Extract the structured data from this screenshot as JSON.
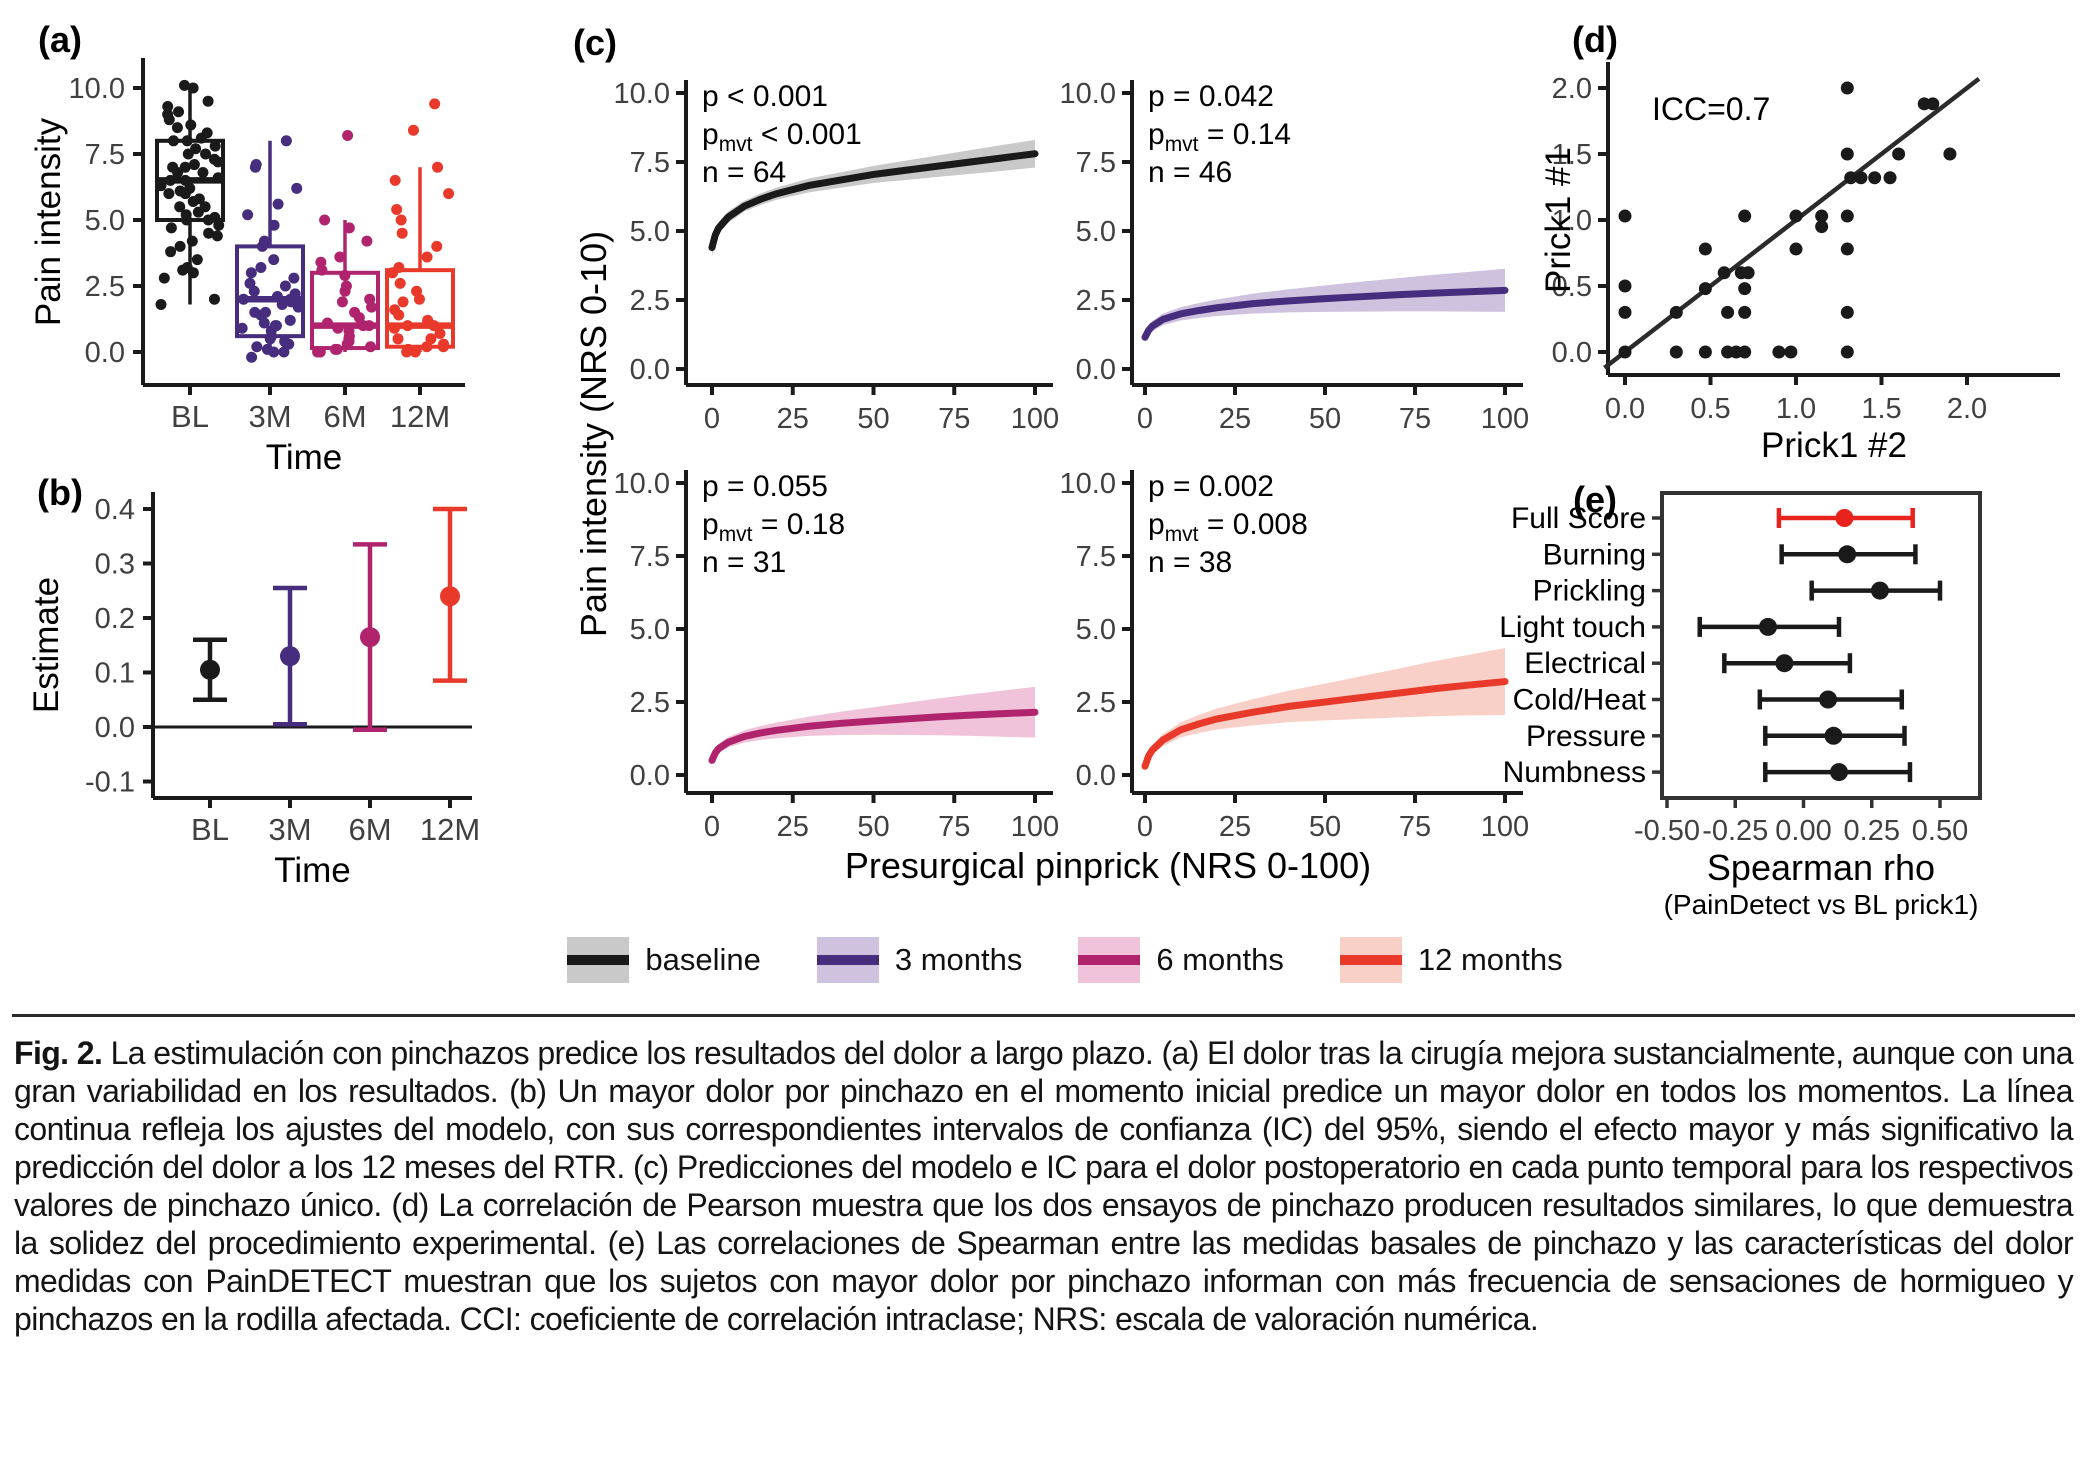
{
  "figure": {
    "panel_tags": {
      "a": "(a)",
      "b": "(b)",
      "c": "(c)",
      "d": "(d)",
      "e": "(e)"
    },
    "colors": {
      "baseline": "#1a1a1a",
      "m3": "#472d7d",
      "m6": "#b0246d",
      "m12": "#e8392b",
      "band_baseline": "#c9c9c9",
      "band_m3": "#cfc2df",
      "band_m6": "#f0c3da",
      "band_m12": "#f9d0c8",
      "forest_highlight": "#e8231d",
      "tick_text": "#404040",
      "axis": "#1a1a1a"
    },
    "legend": {
      "items": [
        {
          "label": "baseline",
          "line": "#1a1a1a",
          "band": "#c9c9c9"
        },
        {
          "label": "3 months",
          "line": "#472d7d",
          "band": "#cfc2df"
        },
        {
          "label": "6 months",
          "line": "#b0246d",
          "band": "#f0c3da"
        },
        {
          "label": "12 months",
          "line": "#e8392b",
          "band": "#f9d0c8"
        }
      ]
    },
    "caption": {
      "label": "Fig. 2.",
      "text": "La estimulación con pinchazos predice los resultados del dolor a largo plazo. (a) El dolor tras la cirugía mejora sustancialmente, aunque con una gran variabilidad en los resultados. (b) Un mayor dolor por pinchazo en el momento inicial predice un mayor dolor en todos los momentos. La línea continua refleja los ajustes del modelo, con sus correspondientes intervalos de confianza (IC) del 95%, siendo el efecto mayor y más significativo la predicción del dolor a los 12 meses del RTR. (c) Predicciones del modelo e IC para el dolor postoperatorio en cada punto temporal para los respectivos valores de pinchazo único. (d) La correlación de Pearson muestra que los dos ensayos de pinchazo producen resultados similares, lo que demuestra la solidez del procedimiento experimental. (e) Las correlaciones de Spearman entre las medidas basales de pinchazo y las características del dolor medidas con PainDETECT muestran que los sujetos con mayor dolor por pinchazo informan con más frecuencia de sensaciones de hormigueo y pinchazos en la rodilla afectada. CCI: coeficiente de correlación intraclase; NRS: escala de valoración numérica."
    }
  },
  "chart_data": [
    {
      "id": "a",
      "type": "boxplot_jitter",
      "xlabel": "Time",
      "ylabel": "Pain intensity",
      "yticks": [
        0,
        2.5,
        5,
        7.5,
        10
      ],
      "ytick_labels": [
        "0.0",
        "2.5",
        "5.0",
        "7.5",
        "10.0"
      ],
      "ylim": [
        -0.6,
        10.8
      ],
      "groups": [
        {
          "label": "BL",
          "color": "#1a1a1a",
          "box": {
            "lo": 1.8,
            "q1": 5.0,
            "med": 6.5,
            "q3": 8.0,
            "hi": 10.0
          },
          "points": [
            1.8,
            2.0,
            2.8,
            3.0,
            3.1,
            3.2,
            3.5,
            3.8,
            4.0,
            4.2,
            4.4,
            4.5,
            4.7,
            4.8,
            5.0,
            5.0,
            5.1,
            5.2,
            5.3,
            5.5,
            5.5,
            5.7,
            5.8,
            6.0,
            6.0,
            6.1,
            6.2,
            6.3,
            6.5,
            6.5,
            6.6,
            6.8,
            6.8,
            7.0,
            7.0,
            7.1,
            7.2,
            7.3,
            7.5,
            7.5,
            7.7,
            7.8,
            8.0,
            8.0,
            8.1,
            8.3,
            8.5,
            8.6,
            8.8,
            9.0,
            9.1,
            9.3,
            9.5,
            10.0,
            10.1
          ]
        },
        {
          "label": "3M",
          "color": "#472d7d",
          "box": {
            "lo": 0.0,
            "q1": 0.6,
            "med": 2.0,
            "q3": 4.0,
            "hi": 8.0
          },
          "points": [
            -0.2,
            0,
            0,
            0.1,
            0.2,
            0.3,
            0.4,
            0.5,
            0.6,
            0.8,
            0.9,
            1.0,
            1.0,
            1.1,
            1.2,
            1.4,
            1.5,
            1.5,
            1.7,
            1.8,
            1.9,
            2.0,
            2.0,
            2.1,
            2.2,
            2.3,
            2.5,
            2.6,
            2.8,
            3.0,
            3.2,
            3.5,
            4.0,
            4.2,
            4.8,
            5.2,
            5.6,
            6.2,
            7.0,
            7.1,
            8.0
          ]
        },
        {
          "label": "6M",
          "color": "#b0246d",
          "box": {
            "lo": 0.0,
            "q1": 0.15,
            "med": 1.0,
            "q3": 3.0,
            "hi": 5.0
          },
          "points": [
            0,
            0,
            0.1,
            0.1,
            0.2,
            0.3,
            0.4,
            0.5,
            0.6,
            0.8,
            0.9,
            1.0,
            1.0,
            1.1,
            1.3,
            1.5,
            1.7,
            1.9,
            2.0,
            2.3,
            2.5,
            2.9,
            3.1,
            3.4,
            3.6,
            4.2,
            4.7,
            5.0,
            8.2
          ]
        },
        {
          "label": "12M",
          "color": "#e8392b",
          "box": {
            "lo": 0.0,
            "q1": 0.2,
            "med": 1.0,
            "q3": 3.1,
            "hi": 7.0
          },
          "points": [
            0,
            0,
            0.1,
            0.2,
            0.2,
            0.3,
            0.5,
            0.5,
            0.7,
            0.9,
            1.0,
            1.0,
            1.2,
            1.4,
            1.6,
            1.9,
            2.0,
            2.3,
            2.6,
            3.0,
            3.2,
            3.6,
            4.0,
            4.5,
            5.0,
            5.4,
            6.0,
            6.5,
            7.0,
            8.4,
            9.4
          ]
        }
      ]
    },
    {
      "id": "b",
      "type": "errorbar",
      "xlabel": "Time",
      "ylabel": "Estimate",
      "yticks": [
        -0.1,
        0,
        0.1,
        0.2,
        0.3,
        0.4
      ],
      "ytick_labels": [
        "-0.1",
        "0.0",
        "0.1",
        "0.2",
        "0.3",
        "0.4"
      ],
      "ylim": [
        -0.15,
        0.43
      ],
      "hline": 0,
      "points": [
        {
          "label": "BL",
          "est": 0.105,
          "lo": 0.05,
          "hi": 0.16,
          "color": "#1a1a1a"
        },
        {
          "label": "3M",
          "est": 0.13,
          "lo": 0.005,
          "hi": 0.255,
          "color": "#472d7d"
        },
        {
          "label": "6M",
          "est": 0.165,
          "lo": -0.005,
          "hi": 0.335,
          "color": "#b0246d"
        },
        {
          "label": "12M",
          "est": 0.24,
          "lo": 0.085,
          "hi": 0.4,
          "color": "#e8392b"
        }
      ]
    },
    {
      "id": "c",
      "type": "line_ci_grid",
      "xlabel": "Presurgical pinprick (NRS 0-100)",
      "ylabel": "Pain intensity (NRS 0-10)",
      "xticks": [
        0,
        25,
        50,
        75,
        100
      ],
      "xtick_labels": [
        "0",
        "25",
        "50",
        "75",
        "100"
      ],
      "yticks": [
        0,
        2.5,
        5,
        7.5,
        10
      ],
      "ytick_labels": [
        "0.0",
        "2.5",
        "5.0",
        "7.5",
        "10.0"
      ],
      "x": [
        0,
        1,
        2,
        5,
        10,
        15,
        20,
        30,
        40,
        50,
        60,
        70,
        80,
        90,
        100
      ],
      "subplots": [
        {
          "name": "baseline",
          "p_line": "p < 0.001",
          "pmvt_value": "< 0.001",
          "n_line": "n = 64",
          "color": "#1a1a1a",
          "band": "#c9c9c9",
          "y": [
            4.4,
            4.85,
            5.1,
            5.5,
            5.9,
            6.15,
            6.35,
            6.65,
            6.85,
            7.05,
            7.2,
            7.35,
            7.5,
            7.65,
            7.8
          ],
          "hw": [
            0.3,
            0.25,
            0.23,
            0.21,
            0.2,
            0.21,
            0.22,
            0.25,
            0.28,
            0.31,
            0.35,
            0.39,
            0.43,
            0.47,
            0.5
          ]
        },
        {
          "name": "3 months",
          "p_line": "p = 0.042",
          "pmvt_value": "= 0.14",
          "n_line": "n = 46",
          "color": "#472d7d",
          "band": "#cfc2df",
          "y": [
            1.15,
            1.4,
            1.55,
            1.8,
            2.0,
            2.12,
            2.22,
            2.37,
            2.47,
            2.55,
            2.62,
            2.69,
            2.75,
            2.8,
            2.85
          ],
          "hw": [
            0.18,
            0.18,
            0.19,
            0.21,
            0.24,
            0.27,
            0.3,
            0.36,
            0.42,
            0.48,
            0.54,
            0.6,
            0.66,
            0.72,
            0.78
          ]
        },
        {
          "name": "6 months",
          "p_line": "p = 0.055",
          "pmvt_value": "= 0.18",
          "n_line": "n = 31",
          "color": "#b0246d",
          "band": "#f0c3da",
          "y": [
            0.5,
            0.75,
            0.9,
            1.12,
            1.32,
            1.44,
            1.53,
            1.67,
            1.77,
            1.85,
            1.92,
            1.99,
            2.05,
            2.1,
            2.15
          ],
          "hw": [
            0.15,
            0.15,
            0.16,
            0.18,
            0.21,
            0.24,
            0.27,
            0.33,
            0.4,
            0.47,
            0.55,
            0.63,
            0.71,
            0.79,
            0.87
          ]
        },
        {
          "name": "12 months",
          "p_line": "p = 0.002",
          "pmvt_value": "= 0.008",
          "n_line": "n = 38",
          "color": "#e8392b",
          "band": "#f9d0c8",
          "y": [
            0.3,
            0.65,
            0.85,
            1.2,
            1.55,
            1.75,
            1.92,
            2.15,
            2.35,
            2.5,
            2.65,
            2.8,
            2.95,
            3.08,
            3.2
          ],
          "hw": [
            0.15,
            0.16,
            0.18,
            0.21,
            0.26,
            0.31,
            0.36,
            0.45,
            0.54,
            0.63,
            0.73,
            0.83,
            0.94,
            1.04,
            1.15
          ]
        }
      ]
    },
    {
      "id": "d",
      "type": "scatter",
      "annotation": "ICC=0.7",
      "xlabel": "Prick1 #2",
      "ylabel": "Prick1 #1",
      "xticks": [
        0,
        0.5,
        1,
        1.5,
        2
      ],
      "xtick_labels": [
        "0.0",
        "0.5",
        "1.0",
        "1.5",
        "2.0"
      ],
      "yticks": [
        0,
        0.5,
        1,
        1.5,
        2
      ],
      "ytick_labels": [
        "0.0",
        "0.5",
        "1.0",
        "1.5",
        "2.0"
      ],
      "identity_line": {
        "x1": -0.12,
        "y1": -0.12,
        "x2": 2.07,
        "y2": 2.07
      },
      "points": [
        [
          0,
          0
        ],
        [
          0,
          0.3
        ],
        [
          0,
          0.5
        ],
        [
          0,
          1.03
        ],
        [
          0.3,
          0
        ],
        [
          0.3,
          0.3
        ],
        [
          0.47,
          0
        ],
        [
          0.47,
          0.48
        ],
        [
          0.47,
          0.78
        ],
        [
          0.58,
          0.6
        ],
        [
          0.6,
          0
        ],
        [
          0.6,
          0.3
        ],
        [
          0.65,
          0
        ],
        [
          0.68,
          0.6
        ],
        [
          0.7,
          0
        ],
        [
          0.7,
          0.3
        ],
        [
          0.7,
          0.48
        ],
        [
          0.72,
          0.6
        ],
        [
          0.7,
          1.03
        ],
        [
          0.9,
          0
        ],
        [
          0.97,
          0
        ],
        [
          1.0,
          0.78
        ],
        [
          1.0,
          1.03
        ],
        [
          1.15,
          0.95
        ],
        [
          1.15,
          1.03
        ],
        [
          1.3,
          0
        ],
        [
          1.3,
          0.3
        ],
        [
          1.3,
          0.78
        ],
        [
          1.3,
          1.03
        ],
        [
          1.32,
          1.32
        ],
        [
          1.3,
          1.5
        ],
        [
          1.3,
          2.0
        ],
        [
          1.38,
          1.32
        ],
        [
          1.46,
          1.32
        ],
        [
          1.55,
          1.32
        ],
        [
          1.6,
          1.5
        ],
        [
          1.75,
          1.88
        ],
        [
          1.8,
          1.88
        ],
        [
          1.9,
          1.5
        ]
      ]
    },
    {
      "id": "e",
      "type": "forest",
      "xlabel": "Spearman rho",
      "xlabel2": "(PainDetect vs BL prick1)",
      "xticks": [
        -0.5,
        -0.25,
        0,
        0.25,
        0.5
      ],
      "xtick_labels": [
        "-0.50",
        "-0.25",
        "0.00",
        "0.25",
        "0.50"
      ],
      "rows": [
        {
          "label": "Full Score",
          "est": 0.15,
          "lo": -0.09,
          "hi": 0.4,
          "color": "#e8231d"
        },
        {
          "label": "Burning",
          "est": 0.16,
          "lo": -0.08,
          "hi": 0.41,
          "color": "#1a1a1a"
        },
        {
          "label": "Prickling",
          "est": 0.28,
          "lo": 0.03,
          "hi": 0.5,
          "color": "#1a1a1a"
        },
        {
          "label": "Light touch",
          "est": -0.13,
          "lo": -0.38,
          "hi": 0.13,
          "color": "#1a1a1a"
        },
        {
          "label": "Electrical",
          "est": -0.07,
          "lo": -0.29,
          "hi": 0.17,
          "color": "#1a1a1a"
        },
        {
          "label": "Cold/Heat",
          "est": 0.09,
          "lo": -0.16,
          "hi": 0.36,
          "color": "#1a1a1a"
        },
        {
          "label": "Pressure",
          "est": 0.11,
          "lo": -0.14,
          "hi": 0.37,
          "color": "#1a1a1a"
        },
        {
          "label": "Numbness",
          "est": 0.13,
          "lo": -0.14,
          "hi": 0.39,
          "color": "#1a1a1a"
        }
      ]
    }
  ]
}
